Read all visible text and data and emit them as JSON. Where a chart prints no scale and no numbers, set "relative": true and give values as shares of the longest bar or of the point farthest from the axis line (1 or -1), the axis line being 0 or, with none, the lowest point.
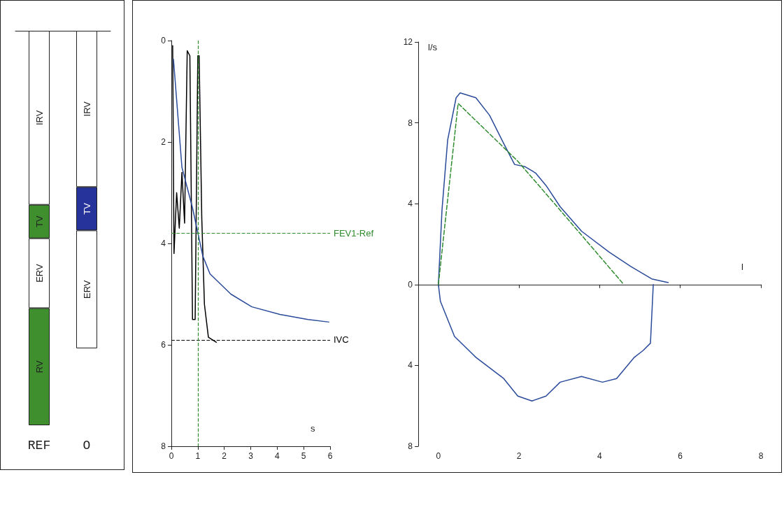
{
  "chart_data": [
    {
      "type": "bar",
      "stacked": true,
      "relative": true,
      "categories": [
        "REF",
        "O"
      ],
      "series": [
        {
          "name": "IRV",
          "colors": [
            "#ffffff",
            "#ffffff"
          ],
          "values": [
            -0.441,
            -0.396
          ]
        },
        {
          "name": "TV",
          "colors": [
            "#3f8f2f",
            "#26339a"
          ],
          "values": [
            -0.085,
            -0.11
          ]
        },
        {
          "name": "ERV",
          "colors": [
            "#ffffff",
            "#ffffff"
          ],
          "values": [
            -0.177,
            -0.299
          ]
        },
        {
          "name": "RV",
          "colors": [
            "#3f8f2f",
            "#3f8f2f"
          ],
          "values": [
            -0.297,
            null
          ]
        }
      ]
    },
    {
      "type": "line",
      "xlabel": "s",
      "xlim": [
        0,
        6
      ],
      "xticks": [
        0,
        1,
        2,
        3,
        4,
        5,
        6
      ],
      "ylim": [
        8,
        0
      ],
      "yticks": [
        0,
        2,
        4,
        6,
        8
      ],
      "marker": "none",
      "series": [
        {
          "color": "#000000",
          "line_style": "solid",
          "x": [
            0.05,
            0.1,
            0.2,
            0.3,
            0.4,
            0.5,
            0.6,
            0.7,
            0.8,
            0.9,
            1.0,
            1.05,
            1.15,
            1.25,
            1.4,
            1.7
          ],
          "values": [
            0.1,
            4.2,
            3.0,
            3.7,
            2.6,
            3.6,
            0.2,
            0.3,
            5.5,
            5.5,
            0.3,
            0.3,
            3.5,
            5.2,
            5.85,
            5.95
          ]
        },
        {
          "color": "#2a4a9a",
          "line_style": "solid",
          "x": [
            0.08,
            0.4,
            0.8,
            1.19,
            1.46,
            2.25,
            3.04,
            4.1,
            5.16,
            5.95
          ],
          "values": [
            0.37,
            2.5,
            3.3,
            4.25,
            4.6,
            5.0,
            5.25,
            5.4,
            5.5,
            5.55
          ]
        }
      ],
      "ref_lines": [
        {
          "axis": "y",
          "value": 3.8,
          "label": "FEV1-Ref",
          "color": "#2e8b2e",
          "line_style": "dashed"
        },
        {
          "axis": "y",
          "value": 5.9,
          "label": "IVC",
          "color": "#000000",
          "line_style": "dashed"
        },
        {
          "axis": "x",
          "value": 1,
          "color": "#2e8b2e",
          "line_style": "dashed"
        }
      ]
    },
    {
      "type": "line",
      "xlabel": "l",
      "ylabel": "l/s",
      "xlim": [
        -0.5,
        8
      ],
      "xticks": [
        0,
        2,
        4,
        6,
        8
      ],
      "ylim": [
        -8,
        12
      ],
      "yticks": [
        {
          "value": -8,
          "label": "8"
        },
        {
          "value": -4,
          "label": "4"
        },
        0,
        4,
        8,
        12
      ],
      "marker": "none",
      "series": [
        {
          "color": "#2a4a9a",
          "line_style": "solid",
          "x": [
            5.33,
            5.26,
            5.08,
            4.86,
            4.42,
            4.07,
            3.55,
            3.02,
            2.67,
            2.32,
            1.97,
            1.62,
            0.93,
            0.4,
            0.05,
            0,
            0.09,
            0.23,
            0.44,
            0.54,
            0.93,
            1.27,
            1.62,
            1.89,
            2.15,
            2.41,
            2.67,
            3.02,
            3.55,
            4.24,
            4.77,
            5.29,
            5.7
          ],
          "values": [
            0,
            -2.9,
            -3.26,
            -3.6,
            -4.65,
            -4.83,
            -4.55,
            -4.83,
            -5.52,
            -5.76,
            -5.52,
            -4.65,
            -3.6,
            -2.57,
            -0.83,
            0,
            3.7,
            7.15,
            9.24,
            9.48,
            9.24,
            8.37,
            6.98,
            5.94,
            5.83,
            5.52,
            4.9,
            3.85,
            2.64,
            1.6,
            0.9,
            0.28,
            0.1
          ]
        },
        {
          "color": "#2e8b2e",
          "line_style": "dashed",
          "x": [
            0,
            0.49,
            1.97,
            3.02,
            4.6
          ],
          "values": [
            0,
            8.96,
            6.1,
            3.68,
            0
          ]
        }
      ]
    }
  ]
}
